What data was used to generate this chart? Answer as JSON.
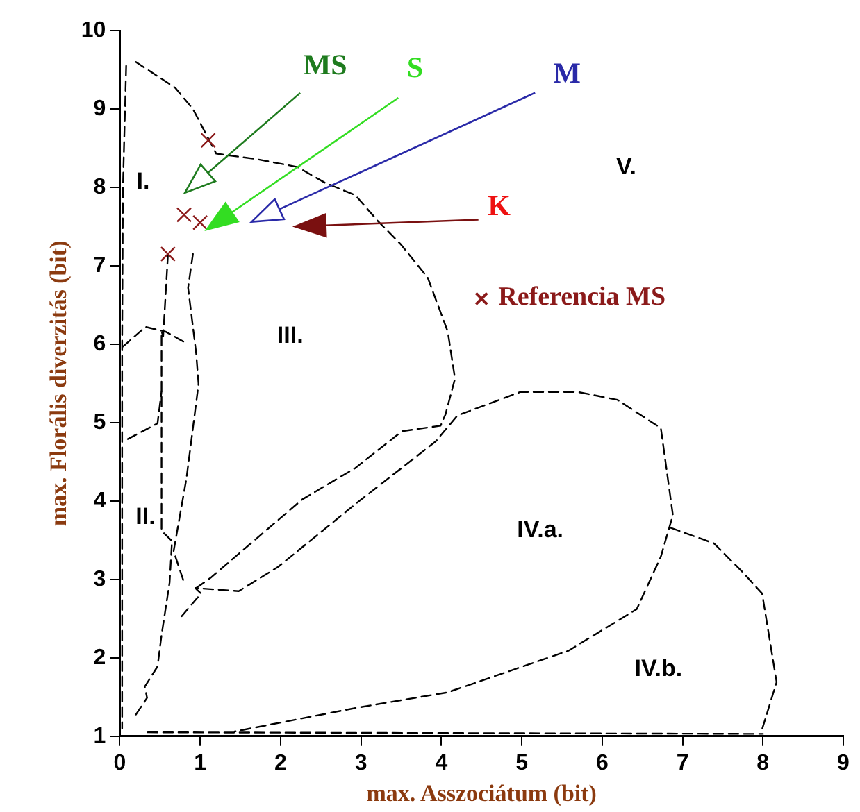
{
  "chart_data": {
    "type": "scatter",
    "xlabel": "max. Asszociátum (bit)",
    "ylabel": "max. Florális diverzitás (bit)",
    "xlim": [
      0,
      9
    ],
    "xticks": [
      0,
      1,
      2,
      3,
      4,
      5,
      6,
      7,
      8,
      9
    ],
    "ylim": [
      1,
      10
    ],
    "yticks": [
      1,
      2,
      3,
      4,
      5,
      6,
      7,
      8,
      9,
      10
    ],
    "grid": false,
    "legend": "right",
    "series": [
      {
        "name": "Referencia MS",
        "color": "#8b1a1a",
        "marker": "cross",
        "x": [
          1.1,
          0.8,
          1.0,
          0.6
        ],
        "values": [
          8.6,
          7.65,
          7.55,
          7.15
        ]
      },
      {
        "type": "line",
        "color": "#000000",
        "line_style": "dashed",
        "marker": "none",
        "x": [
          0.2,
          0.69,
          0.91,
          1.2,
          1.7,
          2.21,
          2.55,
          2.93,
          3.22,
          3.49,
          3.83,
          4.08,
          4.17,
          4.05,
          3.99,
          3.51,
          2.93,
          2.27,
          1.13,
          0.95
        ],
        "values": [
          9.6,
          9.27,
          9.0,
          8.43,
          8.36,
          8.26,
          8.06,
          7.9,
          7.56,
          7.28,
          6.85,
          6.16,
          5.56,
          5.1,
          4.96,
          4.89,
          4.42,
          4.02,
          3.02,
          2.89
        ]
      },
      {
        "type": "line",
        "color": "#000000",
        "line_style": "dashed",
        "marker": "none",
        "x": [
          0.77,
          1.01,
          0.94,
          1.48,
          1.97,
          2.93,
          3.93,
          4.2,
          4.98,
          5.7,
          6.19,
          6.73,
          6.88,
          6.73,
          6.43,
          5.58,
          4.08,
          2.93,
          1.43
        ],
        "values": [
          2.53,
          2.82,
          2.89,
          2.85,
          3.16,
          3.96,
          4.76,
          5.09,
          5.39,
          5.39,
          5.29,
          4.93,
          3.82,
          3.29,
          2.62,
          2.09,
          1.56,
          1.36,
          1.06
        ]
      },
      {
        "type": "line",
        "color": "#000000",
        "line_style": "dashed",
        "marker": "none",
        "x": [
          6.85,
          7.39,
          7.75,
          7.99,
          8.17,
          7.99
        ],
        "values": [
          3.66,
          3.46,
          3.09,
          2.82,
          1.69,
          1.09
        ]
      },
      {
        "type": "line",
        "color": "#000000",
        "line_style": "dashed",
        "marker": "none",
        "x": [
          0.6,
          0.54,
          0.52,
          0.52,
          0.65,
          0.62,
          0.52,
          0.47,
          0.31,
          0.34,
          0.19
        ],
        "values": [
          7.15,
          6.1,
          6.16,
          3.62,
          3.49,
          2.96,
          2.29,
          1.89,
          1.63,
          1.49,
          1.26
        ]
      },
      {
        "type": "line",
        "color": "#000000",
        "line_style": "dashed",
        "marker": "none",
        "x": [
          0.91,
          0.85,
          0.95,
          0.98,
          0.83,
          0.67,
          0.8
        ],
        "values": [
          7.15,
          6.72,
          5.89,
          5.49,
          4.29,
          3.36,
          2.96
        ]
      },
      {
        "type": "line",
        "color": "#000000",
        "line_style": "dashed",
        "marker": "none",
        "x": [
          0.04,
          0.32,
          0.57,
          0.85
        ],
        "values": [
          5.97,
          6.22,
          6.16,
          6.0
        ]
      },
      {
        "type": "line",
        "color": "#000000",
        "line_style": "dashed",
        "marker": "none",
        "x": [
          0.1,
          0.47,
          0.52
        ],
        "values": [
          4.79,
          4.99,
          5.4
        ]
      },
      {
        "type": "line",
        "color": "#000000",
        "line_style": "dashed",
        "marker": "none",
        "x": [
          0.08,
          0.04,
          0.03,
          0.03
        ],
        "values": [
          9.55,
          8.0,
          6.0,
          1.1
        ]
      },
      {
        "type": "line",
        "color": "#000000",
        "line_style": "dashed",
        "marker": "none",
        "x": [
          0.35,
          8.0
        ],
        "values": [
          1.05,
          1.03
        ]
      }
    ],
    "annotations": [
      "MS",
      "S",
      "M",
      "K",
      "I.",
      "II.",
      "III.",
      "IV.a.",
      "IV.b.",
      "V."
    ]
  }
}
